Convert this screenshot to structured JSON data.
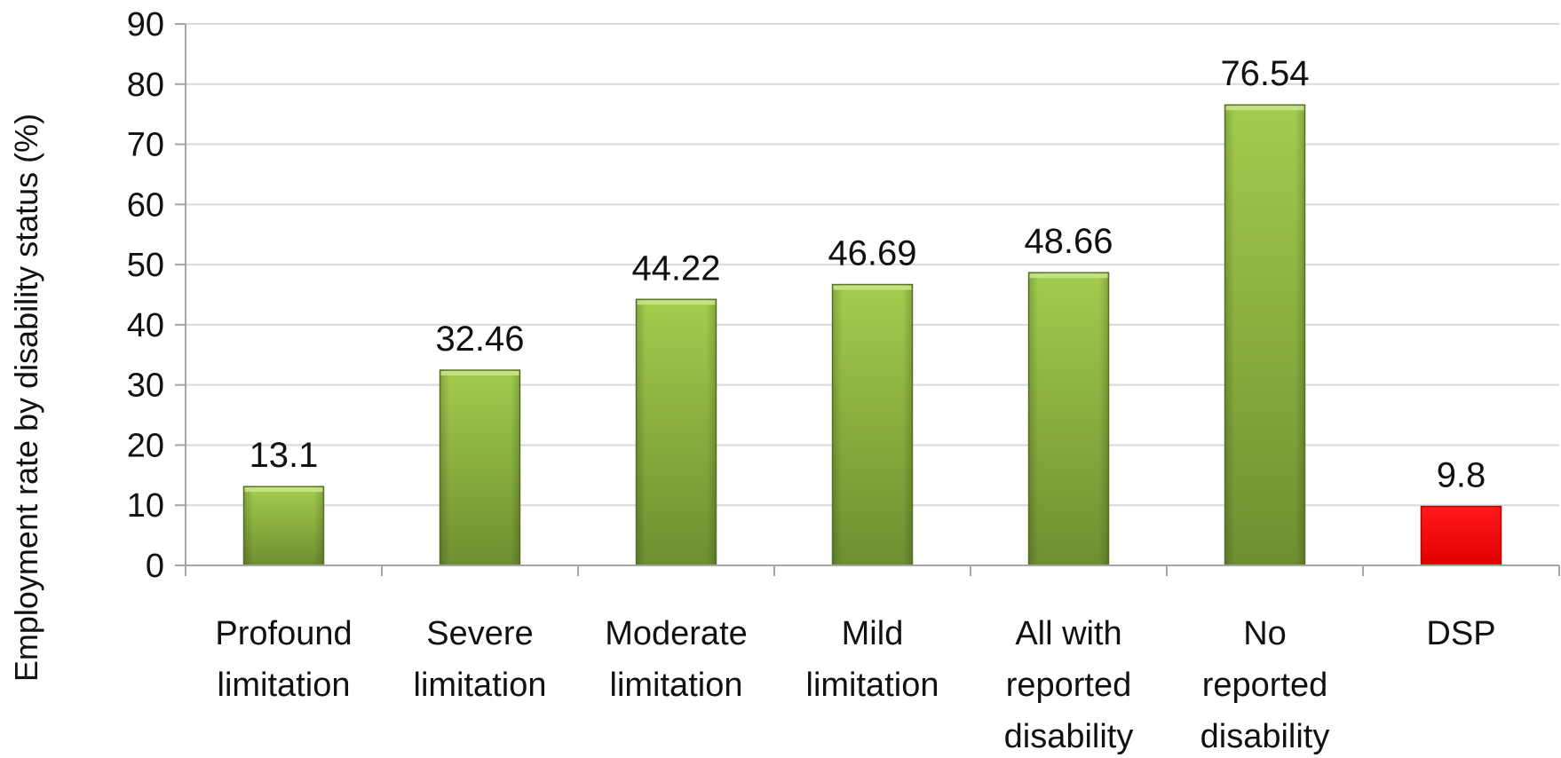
{
  "chart_data": {
    "type": "bar",
    "title": "",
    "xlabel": "",
    "ylabel": "Employment rate by disability status (%)",
    "ylim": [
      0,
      90
    ],
    "yticks": [
      0,
      10,
      20,
      30,
      40,
      50,
      60,
      70,
      80,
      90
    ],
    "grid": true,
    "legend": "none",
    "categories": [
      [
        "Profound",
        "limitation"
      ],
      [
        "Severe",
        "limitation"
      ],
      [
        "Moderate",
        "limitation"
      ],
      [
        "Mild",
        "limitation"
      ],
      [
        "All with",
        "reported",
        "disability"
      ],
      [
        "No",
        "reported",
        "disability"
      ],
      [
        "DSP"
      ]
    ],
    "values": [
      13.1,
      32.46,
      44.22,
      46.69,
      48.66,
      76.54,
      9.8
    ],
    "data_labels": [
      "13.1",
      "32.46",
      "44.22",
      "46.69",
      "48.66",
      "76.54",
      "9.8"
    ],
    "bar_colors": [
      "#8db33a",
      "#8db33a",
      "#8db33a",
      "#8db33a",
      "#8db33a",
      "#8db33a",
      "#ff0000"
    ]
  }
}
